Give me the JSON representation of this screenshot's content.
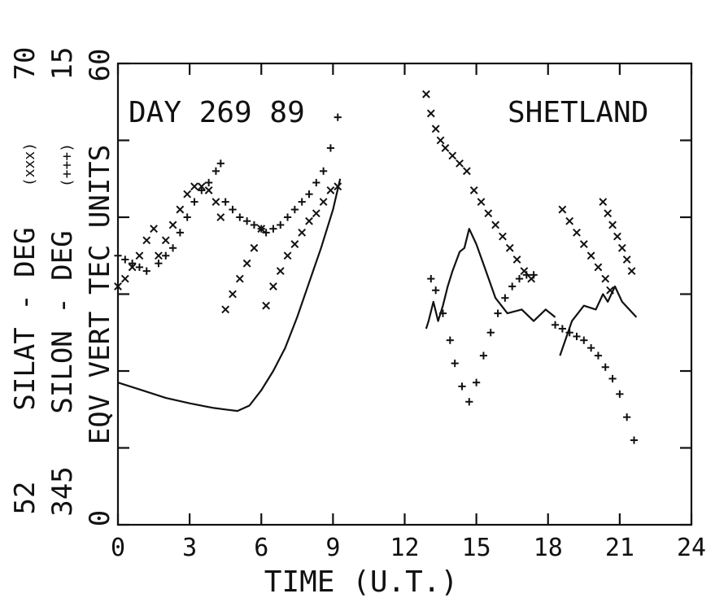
{
  "chart_data": {
    "type": "scatter",
    "title": "",
    "xlabel": "TIME (U.T.)",
    "xlim": [
      0,
      24
    ],
    "ylim": [
      0,
      60
    ],
    "xticks": [
      "0",
      "3",
      "6",
      "9",
      "12",
      "15",
      "18",
      "21",
      "24"
    ],
    "annotations": {
      "day": "DAY 269 89",
      "station": "SHETLAND"
    },
    "left_axis_labels": [
      {
        "bottom": "52",
        "text": "SILAT - DEG",
        "legend": "(xxx)",
        "top": "70"
      },
      {
        "bottom": "345",
        "text": "SILON - DEG",
        "legend": "(+++)",
        "top": "15"
      },
      {
        "bottom": "0",
        "text": "EQV VERT TEC UNITS",
        "legend": "",
        "top": "60"
      }
    ],
    "grid": false,
    "series": [
      {
        "marker": "x",
        "points": [
          [
            0.0,
            31
          ],
          [
            0.3,
            32
          ],
          [
            0.6,
            33.5
          ],
          [
            0.9,
            35
          ],
          [
            1.2,
            37
          ],
          [
            1.5,
            38.5
          ],
          [
            1.7,
            35
          ],
          [
            2.0,
            37
          ],
          [
            2.3,
            39
          ],
          [
            2.6,
            41
          ],
          [
            2.9,
            43
          ],
          [
            3.2,
            44
          ],
          [
            3.5,
            44
          ],
          [
            3.8,
            43.5
          ],
          [
            4.1,
            42
          ],
          [
            4.3,
            40
          ],
          [
            4.5,
            28
          ],
          [
            4.8,
            30
          ],
          [
            5.1,
            32
          ],
          [
            5.4,
            34
          ],
          [
            5.7,
            36
          ],
          [
            6.0,
            38.5
          ],
          [
            6.2,
            28.5
          ],
          [
            6.5,
            31
          ],
          [
            6.8,
            33
          ],
          [
            7.1,
            35
          ],
          [
            7.4,
            36.5
          ],
          [
            7.7,
            38
          ],
          [
            8.0,
            39.5
          ],
          [
            8.3,
            40.5
          ],
          [
            8.6,
            42
          ],
          [
            8.9,
            43.5
          ],
          [
            9.2,
            44
          ],
          [
            12.9,
            56
          ],
          [
            13.1,
            53.5
          ],
          [
            13.3,
            51.5
          ],
          [
            13.5,
            50
          ],
          [
            13.7,
            49
          ],
          [
            14.0,
            48
          ],
          [
            14.3,
            47
          ],
          [
            14.6,
            46
          ],
          [
            14.9,
            43.5
          ],
          [
            15.2,
            42
          ],
          [
            15.5,
            40.5
          ],
          [
            15.8,
            39
          ],
          [
            16.1,
            37.5
          ],
          [
            16.4,
            36
          ],
          [
            16.7,
            34.5
          ],
          [
            17.0,
            33
          ],
          [
            17.3,
            32
          ],
          [
            18.6,
            41
          ],
          [
            18.9,
            39.5
          ],
          [
            19.2,
            38
          ],
          [
            19.5,
            36.5
          ],
          [
            19.8,
            35
          ],
          [
            20.1,
            33.5
          ],
          [
            20.4,
            32
          ],
          [
            20.6,
            30.5
          ],
          [
            20.3,
            42
          ],
          [
            20.5,
            40.5
          ],
          [
            20.7,
            39
          ],
          [
            20.9,
            37.5
          ],
          [
            21.1,
            36
          ],
          [
            21.3,
            34.5
          ],
          [
            21.5,
            33
          ]
        ]
      },
      {
        "marker": "+",
        "points": [
          [
            0.0,
            35
          ],
          [
            0.3,
            34.5
          ],
          [
            0.6,
            34
          ],
          [
            0.9,
            33.5
          ],
          [
            1.2,
            33
          ],
          [
            1.7,
            34
          ],
          [
            2.0,
            35
          ],
          [
            2.3,
            36
          ],
          [
            2.6,
            38
          ],
          [
            2.9,
            40
          ],
          [
            3.2,
            42
          ],
          [
            3.5,
            43.5
          ],
          [
            3.8,
            44.5
          ],
          [
            4.1,
            46
          ],
          [
            4.3,
            47
          ],
          [
            4.5,
            42
          ],
          [
            4.8,
            41
          ],
          [
            5.1,
            40
          ],
          [
            5.4,
            39.5
          ],
          [
            5.7,
            39
          ],
          [
            6.0,
            38.5
          ],
          [
            6.2,
            38
          ],
          [
            6.5,
            38.5
          ],
          [
            6.8,
            39
          ],
          [
            7.1,
            40
          ],
          [
            7.4,
            41
          ],
          [
            7.7,
            42
          ],
          [
            8.0,
            43
          ],
          [
            8.3,
            44.5
          ],
          [
            8.6,
            46
          ],
          [
            8.9,
            49
          ],
          [
            9.2,
            53
          ],
          [
            13.1,
            32
          ],
          [
            13.3,
            30.5
          ],
          [
            13.6,
            27.5
          ],
          [
            13.9,
            24
          ],
          [
            14.1,
            21
          ],
          [
            14.4,
            18
          ],
          [
            14.7,
            16
          ],
          [
            15.0,
            18.5
          ],
          [
            15.3,
            22
          ],
          [
            15.6,
            25
          ],
          [
            15.9,
            27.5
          ],
          [
            16.2,
            29.5
          ],
          [
            16.5,
            31
          ],
          [
            16.8,
            32
          ],
          [
            17.1,
            32.5
          ],
          [
            17.4,
            32.5
          ],
          [
            18.3,
            26
          ],
          [
            18.6,
            25.5
          ],
          [
            18.9,
            25
          ],
          [
            19.2,
            24.5
          ],
          [
            19.5,
            24
          ],
          [
            19.8,
            23
          ],
          [
            20.1,
            22
          ],
          [
            20.4,
            20.5
          ],
          [
            20.7,
            19
          ],
          [
            21.0,
            17
          ],
          [
            21.3,
            14
          ],
          [
            21.6,
            11
          ]
        ]
      },
      {
        "marker": "line",
        "segments": [
          [
            [
              0.0,
              18.5
            ],
            [
              1.0,
              17.5
            ],
            [
              2.0,
              16.5
            ],
            [
              3.0,
              15.8
            ],
            [
              4.0,
              15.2
            ],
            [
              4.5,
              15.0
            ],
            [
              5.0,
              14.8
            ],
            [
              5.5,
              15.5
            ],
            [
              6.0,
              17.5
            ],
            [
              6.5,
              20.0
            ],
            [
              7.0,
              23.0
            ],
            [
              7.5,
              27.0
            ],
            [
              8.0,
              31.5
            ],
            [
              8.5,
              36.0
            ],
            [
              9.0,
              41.0
            ],
            [
              9.3,
              45.0
            ]
          ],
          [
            [
              12.9,
              25.5
            ],
            [
              13.0,
              26.5
            ],
            [
              13.2,
              29.0
            ],
            [
              13.4,
              26.5
            ],
            [
              13.6,
              28.5
            ],
            [
              13.8,
              31.0
            ],
            [
              14.0,
              33.0
            ],
            [
              14.3,
              35.5
            ],
            [
              14.5,
              36.0
            ],
            [
              14.7,
              38.5
            ],
            [
              15.0,
              36.5
            ],
            [
              15.4,
              33.0
            ],
            [
              15.8,
              29.5
            ],
            [
              16.3,
              27.5
            ],
            [
              16.9,
              28.0
            ],
            [
              17.4,
              26.5
            ],
            [
              17.9,
              28.0
            ],
            [
              18.3,
              27.0
            ]
          ],
          [
            [
              18.5,
              22.0
            ],
            [
              19.0,
              26.5
            ],
            [
              19.5,
              28.5
            ],
            [
              20.0,
              28.0
            ],
            [
              20.3,
              30.0
            ],
            [
              20.5,
              29.0
            ],
            [
              20.8,
              31.0
            ],
            [
              21.1,
              29.0
            ],
            [
              21.4,
              28.0
            ],
            [
              21.7,
              27.0
            ]
          ]
        ]
      }
    ]
  }
}
